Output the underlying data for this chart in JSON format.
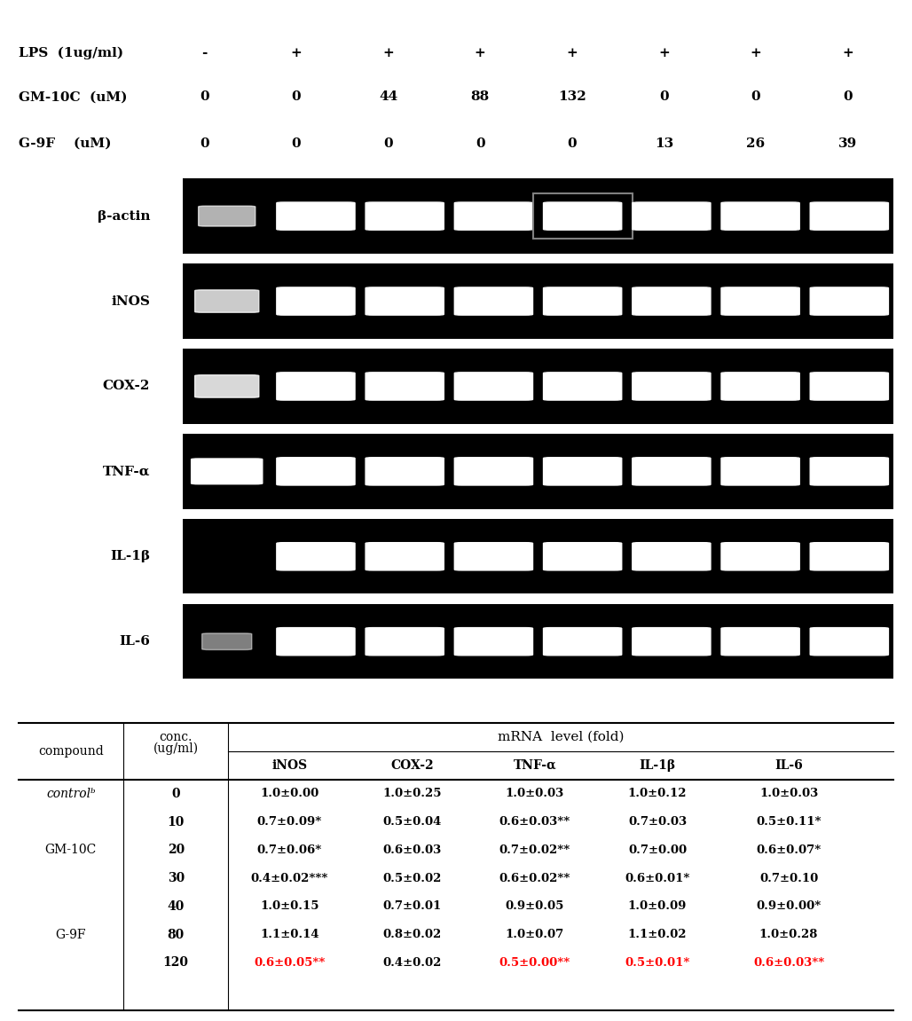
{
  "header_rows": [
    {
      "label": "LPS  (1ug/ml)",
      "values": [
        "-",
        "+",
        "+",
        "+",
        "+",
        "+",
        "+",
        "+"
      ]
    },
    {
      "label": "GM-10C  (uM)",
      "values": [
        "0",
        "0",
        "44",
        "88",
        "132",
        "0",
        "0",
        "0"
      ]
    },
    {
      "label": "G-9F    (uM)",
      "values": [
        "0",
        "0",
        "0",
        "0",
        "0",
        "13",
        "26",
        "39"
      ]
    }
  ],
  "gel_labels": [
    "β-actin",
    "iNOS",
    "COX-2",
    "TNF-α",
    "IL-1β",
    "IL-6"
  ],
  "n_lanes": 8,
  "table_header_top": "mRNA  level (fold)",
  "table_col1": "compound",
  "table_col2": "conc.\n(ug/ml)",
  "table_cols": [
    "iNOS",
    "COX-2",
    "TNF-α",
    "IL-1β",
    "IL-6"
  ],
  "table_rows": [
    {
      "compound": "controlᵇ",
      "conc": "0",
      "values": [
        "1.0±0.00",
        "1.0±0.25",
        "1.0±0.03",
        "1.0±0.12",
        "1.0±0.03"
      ],
      "red": [
        false,
        false,
        false,
        false,
        false
      ]
    },
    {
      "compound": "",
      "conc": "10",
      "values": [
        "0.7±0.09*",
        "0.5±0.04",
        "0.6±0.03**",
        "0.7±0.03",
        "0.5±0.11*"
      ],
      "red": [
        false,
        false,
        false,
        false,
        false
      ]
    },
    {
      "compound": "GM-10C",
      "conc": "20",
      "values": [
        "0.7±0.06*",
        "0.6±0.03",
        "0.7±0.02**",
        "0.7±0.00",
        "0.6±0.07*"
      ],
      "red": [
        false,
        false,
        false,
        false,
        false
      ]
    },
    {
      "compound": "",
      "conc": "30",
      "values": [
        "0.4±0.02***",
        "0.5±0.02",
        "0.6±0.02**",
        "0.6±0.01*",
        "0.7±0.10"
      ],
      "red": [
        false,
        false,
        false,
        false,
        false
      ]
    },
    {
      "compound": "",
      "conc": "40",
      "values": [
        "1.0±0.15",
        "0.7±0.01",
        "0.9±0.05",
        "1.0±0.09",
        "0.9±0.00*"
      ],
      "red": [
        false,
        false,
        false,
        false,
        false
      ]
    },
    {
      "compound": "G-9F",
      "conc": "80",
      "values": [
        "1.1±0.14",
        "0.8±0.02",
        "1.0±0.07",
        "1.1±0.02",
        "1.0±0.28"
      ],
      "red": [
        false,
        false,
        false,
        false,
        false
      ]
    },
    {
      "compound": "",
      "conc": "120",
      "values": [
        "0.6±0.05**",
        "0.4±0.02",
        "0.5±0.00**",
        "0.5±0.01*",
        "0.6±0.03**"
      ],
      "red": [
        true,
        false,
        true,
        true,
        true
      ]
    }
  ],
  "bg_color": "#ffffff",
  "gel_bg": "#000000",
  "band_color": "#ffffff",
  "label_font_size": 11,
  "header_font_size": 11,
  "table_font_size": 10
}
